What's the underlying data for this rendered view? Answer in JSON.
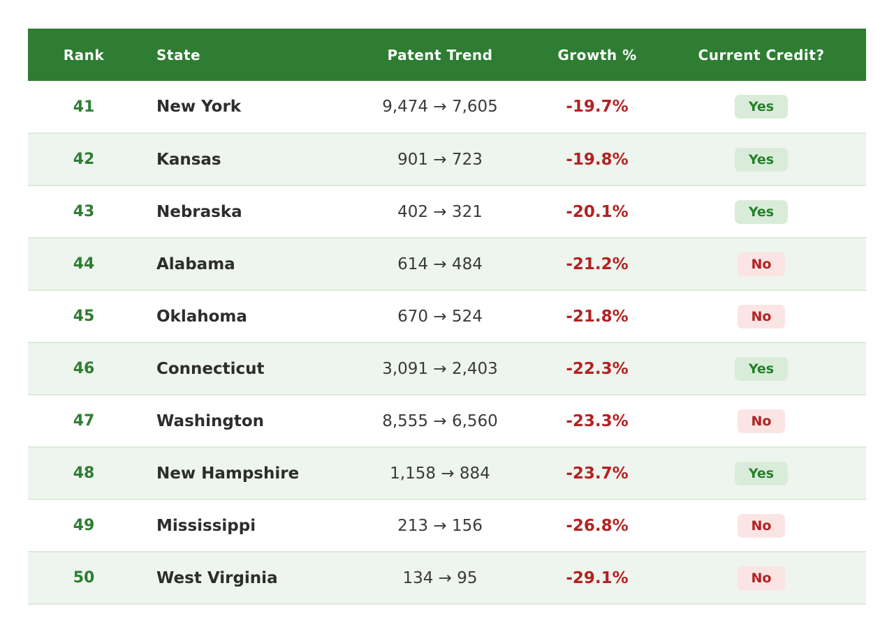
{
  "chart_data": {
    "type": "table",
    "columns": [
      "Rank",
      "State",
      "Patent Trend",
      "Growth %",
      "Current Credit?"
    ],
    "rows": [
      {
        "rank": "41",
        "state": "New York",
        "trend": "9,474 → 7,605",
        "growth": "-19.7%",
        "credit": "Yes"
      },
      {
        "rank": "42",
        "state": "Kansas",
        "trend": "901 → 723",
        "growth": "-19.8%",
        "credit": "Yes"
      },
      {
        "rank": "43",
        "state": "Nebraska",
        "trend": "402 → 321",
        "growth": "-20.1%",
        "credit": "Yes"
      },
      {
        "rank": "44",
        "state": "Alabama",
        "trend": "614 → 484",
        "growth": "-21.2%",
        "credit": "No"
      },
      {
        "rank": "45",
        "state": "Oklahoma",
        "trend": "670 → 524",
        "growth": "-21.8%",
        "credit": "No"
      },
      {
        "rank": "46",
        "state": "Connecticut",
        "trend": "3,091 → 2,403",
        "growth": "-22.3%",
        "credit": "Yes"
      },
      {
        "rank": "47",
        "state": "Washington",
        "trend": "8,555 → 6,560",
        "growth": "-23.3%",
        "credit": "No"
      },
      {
        "rank": "48",
        "state": "New Hampshire",
        "trend": "1,158 → 884",
        "growth": "-23.7%",
        "credit": "Yes"
      },
      {
        "rank": "49",
        "state": "Mississippi",
        "trend": "213 → 156",
        "growth": "-26.8%",
        "credit": "No"
      },
      {
        "rank": "50",
        "state": "West Virginia",
        "trend": "134 → 95",
        "growth": "-29.1%",
        "credit": "No"
      }
    ],
    "layout": {
      "striped_rows": "even ranks (42,44,46,48,50)",
      "alignments": {
        "rank": "center",
        "state": "left",
        "trend": "center",
        "growth": "center",
        "credit": "center"
      }
    }
  },
  "colors": {
    "header_bg": "#2e7d32",
    "header_text": "#ffffff",
    "rank_green": "#2e7d32",
    "state_text": "#2d2d2d",
    "trend_text": "#3a3a3a",
    "growth_red": "#b22222",
    "stripe_bg": "#eef4ee",
    "row_border": "#dde9dd",
    "yes_bg": "#d9ecd9",
    "yes_text": "#25802a",
    "no_bg": "#fbe4e4",
    "no_text": "#b22222",
    "page_bg": "#ffffff"
  }
}
